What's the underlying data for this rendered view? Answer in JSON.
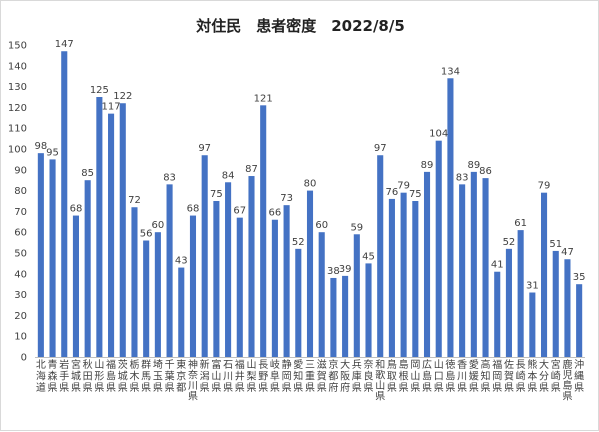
{
  "chart_data": {
    "type": "bar",
    "title": "対住民　患者密度　2022/8/5",
    "xlabel": "",
    "ylabel": "",
    "ylim": [
      0,
      150
    ],
    "yticks": [
      0,
      10,
      20,
      30,
      40,
      50,
      60,
      70,
      80,
      90,
      100,
      110,
      120,
      130,
      140,
      150
    ],
    "grid": false,
    "legend": "none",
    "bar_color": "#4472c4",
    "categories": [
      "北海道",
      "青森県",
      "岩手県",
      "宮城県",
      "秋田県",
      "山形県",
      "福島県",
      "茨城県",
      "栃木県",
      "群馬県",
      "埼玉県",
      "千葉県",
      "東京都",
      "神奈川県",
      "新潟県",
      "富山県",
      "石川県",
      "福井県",
      "山梨県",
      "長野県",
      "岐阜県",
      "静岡県",
      "愛知県",
      "三重県",
      "滋賀県",
      "京都府",
      "大阪府",
      "兵庫県",
      "奈良県",
      "和歌山県",
      "鳥取県",
      "島根県",
      "岡山県",
      "広島県",
      "山口県",
      "徳島県",
      "香川県",
      "愛媛県",
      "高知県",
      "福岡県",
      "佐賀県",
      "長崎県",
      "熊本県",
      "大分県",
      "宮崎県",
      "鹿児島県",
      "沖縄県"
    ],
    "values": [
      98,
      95,
      147,
      68,
      85,
      125,
      117,
      122,
      72,
      56,
      60,
      83,
      43,
      68,
      97,
      75,
      84,
      67,
      87,
      121,
      66,
      73,
      52,
      80,
      60,
      38,
      39,
      59,
      45,
      97,
      76,
      79,
      75,
      89,
      104,
      134,
      83,
      89,
      86,
      41,
      52,
      61,
      31,
      79,
      51,
      47,
      35
    ]
  }
}
